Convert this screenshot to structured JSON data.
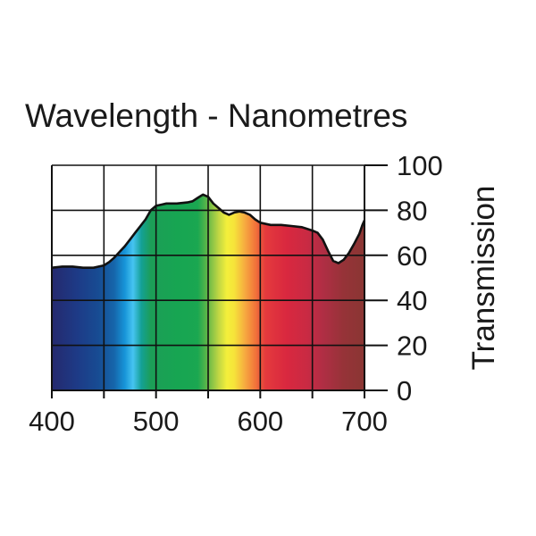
{
  "chart_data": {
    "type": "area",
    "title": "Wavelength - Nanometres",
    "xlabel": "",
    "ylabel": "Transmission",
    "xlim": [
      400,
      700
    ],
    "ylim": [
      0,
      100
    ],
    "grid": true,
    "y_axis_side": "right",
    "x_ticks": [
      400,
      500,
      600,
      700
    ],
    "x_tick_labels": [
      "400",
      "500",
      "600",
      "700"
    ],
    "x_gridlines": [
      450,
      500,
      550,
      600,
      650,
      700
    ],
    "y_ticks": [
      0,
      20,
      40,
      60,
      80,
      100
    ],
    "y_tick_labels": [
      "0",
      "20",
      "40",
      "60",
      "80",
      "100"
    ],
    "series": [
      {
        "name": "Transmission",
        "x": [
          400,
          410,
          420,
          430,
          440,
          445,
          450,
          455,
          460,
          465,
          470,
          475,
          480,
          485,
          490,
          495,
          500,
          505,
          510,
          520,
          530,
          535,
          540,
          545,
          550,
          555,
          560,
          565,
          570,
          575,
          580,
          585,
          590,
          595,
          600,
          610,
          620,
          630,
          640,
          650,
          655,
          660,
          665,
          670,
          675,
          680,
          685,
          690,
          695,
          698,
          700
        ],
        "y": [
          54.5,
          55,
          55,
          54.5,
          54.5,
          55,
          55.5,
          57,
          59,
          61.5,
          64,
          67,
          70,
          73,
          76,
          80,
          82,
          82.5,
          83,
          83,
          83.5,
          84,
          85.5,
          87,
          86,
          83,
          81,
          79,
          78,
          79,
          79.5,
          79,
          78,
          76,
          74.5,
          73.5,
          73.5,
          73,
          72.5,
          71,
          70,
          67,
          62,
          57.5,
          56.5,
          58,
          61,
          65,
          69.5,
          73.5,
          75.5
        ]
      }
    ],
    "spectrum_colors": [
      {
        "nm": 400,
        "color": "#25296e"
      },
      {
        "nm": 425,
        "color": "#1d3b87"
      },
      {
        "nm": 445,
        "color": "#174c93"
      },
      {
        "nm": 460,
        "color": "#1666ab"
      },
      {
        "nm": 470,
        "color": "#1794d8"
      },
      {
        "nm": 478,
        "color": "#46c4f1"
      },
      {
        "nm": 486,
        "color": "#14a095"
      },
      {
        "nm": 495,
        "color": "#1c9e57"
      },
      {
        "nm": 520,
        "color": "#17a552"
      },
      {
        "nm": 540,
        "color": "#1aa751"
      },
      {
        "nm": 550,
        "color": "#67b947"
      },
      {
        "nm": 560,
        "color": "#bfd644"
      },
      {
        "nm": 568,
        "color": "#f4ef3b"
      },
      {
        "nm": 575,
        "color": "#f6e43a"
      },
      {
        "nm": 585,
        "color": "#f6ac40"
      },
      {
        "nm": 595,
        "color": "#f2763a"
      },
      {
        "nm": 605,
        "color": "#e43a3d"
      },
      {
        "nm": 625,
        "color": "#d9283f"
      },
      {
        "nm": 645,
        "color": "#c92a43"
      },
      {
        "nm": 660,
        "color": "#b02e44"
      },
      {
        "nm": 680,
        "color": "#963338"
      },
      {
        "nm": 700,
        "color": "#8a3633"
      }
    ],
    "line_color": "#111111"
  }
}
